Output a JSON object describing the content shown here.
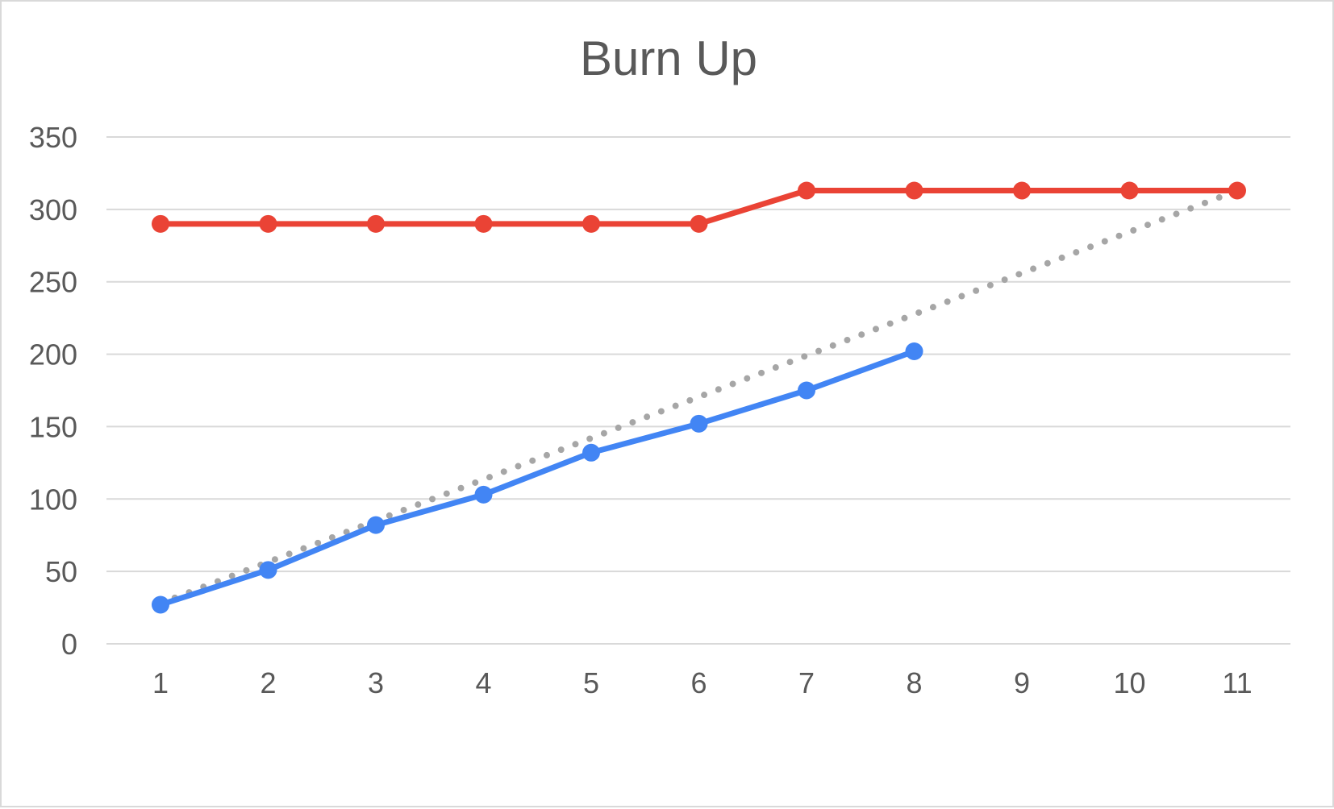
{
  "chart_data": {
    "type": "line",
    "title": "Burn Up",
    "xlabel": "",
    "ylabel": "",
    "x": [
      1,
      2,
      3,
      4,
      5,
      6,
      7,
      8,
      9,
      10,
      11
    ],
    "ylim": [
      0,
      350
    ],
    "yticks": [
      0,
      50,
      100,
      150,
      200,
      250,
      300,
      350
    ],
    "grid": true,
    "legend": "none",
    "series": [
      {
        "color": "#ea4335",
        "style": "solid",
        "markers": true,
        "values": [
          290,
          290,
          290,
          290,
          290,
          290,
          313,
          313,
          313,
          313,
          313
        ]
      },
      {
        "color": "#4285f4",
        "style": "solid",
        "markers": true,
        "values": [
          27,
          51,
          82,
          103,
          132,
          152,
          175,
          202,
          null,
          null,
          null
        ]
      },
      {
        "color": "#a6a6a6",
        "style": "dotted",
        "markers": false,
        "values": [
          28,
          56.5,
          85,
          113.5,
          142,
          170.5,
          199,
          227.5,
          256,
          284.5,
          313
        ]
      }
    ]
  }
}
